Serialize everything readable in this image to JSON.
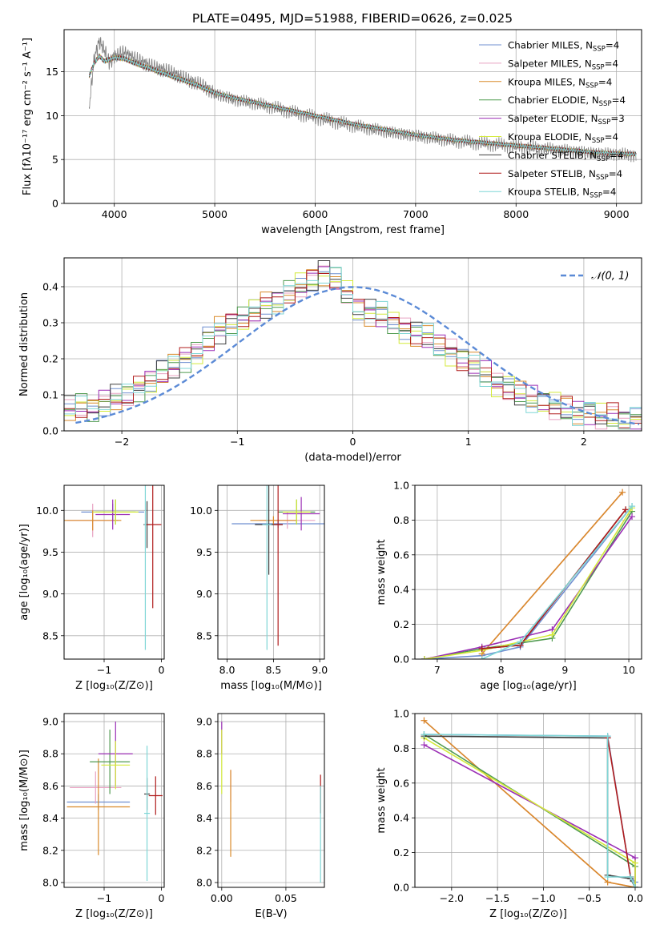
{
  "figure": {
    "title": "PLATE=0495, MJD=51988, FIBERID=0626, z=0.025"
  },
  "series": [
    {
      "name": "Chabrier MILES",
      "nssp": "4",
      "color": "#6f8fd0"
    },
    {
      "name": "Salpeter MILES",
      "nssp": "4",
      "color": "#e8a2c2"
    },
    {
      "name": "Kroupa MILES",
      "nssp": "4",
      "color": "#d98a2a"
    },
    {
      "name": "Chabrier ELODIE",
      "nssp": "4",
      "color": "#4f9a4f"
    },
    {
      "name": "Salpeter ELODIE",
      "nssp": "3",
      "color": "#9b2fb5"
    },
    {
      "name": "Kroupa ELODIE",
      "nssp": "4",
      "color": "#d4ea3a"
    },
    {
      "name": "Chabrier STELIB",
      "nssp": "4",
      "color": "#3f3f3f"
    },
    {
      "name": "Salpeter STELIB",
      "nssp": "4",
      "color": "#b01c1c"
    },
    {
      "name": "Kroupa STELIB",
      "nssp": "4",
      "color": "#7fd6d6"
    }
  ],
  "chart_data": [
    {
      "id": "spectrum",
      "type": "line",
      "xlabel": "wavelength [Angstrom, rest frame]",
      "ylabel": "Flux [fλ10⁻¹⁷ erg cm⁻² s⁻¹ A⁻¹]",
      "xlim": [
        3500,
        9250
      ],
      "ylim": [
        0,
        19.8
      ],
      "xticks": [
        4000,
        5000,
        6000,
        7000,
        8000,
        9000
      ],
      "yticks": [
        0,
        5,
        10,
        15
      ],
      "data_color": "#808080",
      "data": {
        "x": [
          3750,
          3800,
          3850,
          3900,
          3950,
          4000,
          4100,
          4200,
          4300,
          4400,
          4500,
          4600,
          4700,
          4800,
          4900,
          5000,
          5200,
          5400,
          5600,
          5800,
          6000,
          6200,
          6400,
          6600,
          6800,
          7000,
          7200,
          7400,
          7600,
          7800,
          8000,
          8200,
          8400,
          8600,
          8800,
          9000,
          9200
        ],
        "y": [
          11,
          16.5,
          18.5,
          17.5,
          16,
          16.8,
          17.2,
          16.5,
          16.0,
          15.5,
          15.2,
          14.8,
          14.2,
          13.8,
          13.3,
          12.5,
          11.8,
          11.4,
          10.9,
          10.3,
          9.8,
          9.3,
          8.8,
          8.4,
          8.0,
          7.7,
          7.4,
          7.1,
          6.9,
          6.7,
          6.5,
          6.3,
          6.1,
          5.9,
          5.7,
          5.6,
          5.5
        ]
      },
      "model": {
        "x": [
          3750,
          3800,
          3850,
          3900,
          4000,
          4100,
          4200,
          4300,
          4400,
          4500,
          4600,
          4700,
          4800,
          4900,
          5000,
          5200,
          5400,
          5600,
          5800,
          6000,
          6200,
          6400,
          6600,
          6800,
          7000,
          7200,
          7400,
          7600,
          7800,
          8000,
          8200,
          8400,
          8600,
          8800,
          9000,
          9200
        ],
        "y": [
          14.5,
          16.0,
          16.8,
          16.2,
          16.6,
          16.5,
          16.0,
          15.6,
          15.2,
          14.8,
          14.4,
          14.0,
          13.6,
          13.1,
          12.6,
          12.0,
          11.5,
          11.0,
          10.5,
          10.0,
          9.5,
          9.0,
          8.6,
          8.2,
          7.8,
          7.5,
          7.2,
          7.0,
          6.8,
          6.6,
          6.4,
          6.2,
          6.0,
          5.8,
          5.7,
          5.6
        ]
      },
      "legend_position": "upper right"
    },
    {
      "id": "residuals",
      "type": "line",
      "xlabel": "(data-model)/error",
      "ylabel": "Normed distribution",
      "xlim": [
        -2.5,
        2.5
      ],
      "ylim": [
        0,
        0.48
      ],
      "xticks": [
        -2,
        -1,
        0,
        1,
        2
      ],
      "yticks": [
        0.0,
        0.1,
        0.2,
        0.3,
        0.4
      ],
      "gaussian": {
        "label": "𝒩(0, 1)",
        "color": "#5b8ad6"
      },
      "hist_base": [
        0.06,
        0.07,
        0.06,
        0.08,
        0.09,
        0.1,
        0.12,
        0.14,
        0.16,
        0.18,
        0.2,
        0.22,
        0.25,
        0.28,
        0.3,
        0.31,
        0.33,
        0.35,
        0.36,
        0.38,
        0.4,
        0.42,
        0.44,
        0.42,
        0.38,
        0.34,
        0.33,
        0.32,
        0.3,
        0.28,
        0.27,
        0.26,
        0.24,
        0.22,
        0.2,
        0.18,
        0.16,
        0.13,
        0.12,
        0.1,
        0.09,
        0.08,
        0.07,
        0.06,
        0.05,
        0.05,
        0.04,
        0.04,
        0.03,
        0.03
      ],
      "legend_position": "upper right"
    },
    {
      "id": "age_vs_Z",
      "type": "scatter",
      "xlabel": "Z [log₁₀(Z/Z⊙)]",
      "ylabel": "age  [log₁₀(age/yr)]",
      "xlim": [
        -1.7,
        0.05
      ],
      "ylim": [
        8.22,
        10.3
      ],
      "xticks": [
        -1,
        0
      ],
      "xticklabels": [
        "−1",
        "0"
      ],
      "yticks": [
        8.5,
        9.0,
        9.5,
        10.0
      ],
      "points": [
        {
          "s": 0,
          "x": -0.85,
          "y": 9.98,
          "xerr": 0.55,
          "yerr": 0.1
        },
        {
          "s": 1,
          "x": -1.2,
          "y": 9.88,
          "xerr": 0.45,
          "yerr": 0.2
        },
        {
          "s": 2,
          "x": -1.2,
          "y": 9.88,
          "xerr": 0.5,
          "yerr": 0.12
        },
        {
          "s": 3,
          "x": -0.8,
          "y": 9.98,
          "xerr": 0.35,
          "yerr": 0.15
        },
        {
          "s": 4,
          "x": -0.85,
          "y": 9.95,
          "xerr": 0.3,
          "yerr": 0.18
        },
        {
          "s": 5,
          "x": -0.8,
          "y": 9.98,
          "xerr": 0.4,
          "yerr": 0.15
        },
        {
          "s": 6,
          "x": -0.25,
          "y": 9.83,
          "xerr": 0.06,
          "yerr": 0.28
        },
        {
          "s": 7,
          "x": -0.15,
          "y": 9.83,
          "xerr": 0.15,
          "yerr": 1.0
        },
        {
          "s": 8,
          "x": -0.28,
          "y": 9.83,
          "xerr": 0.02,
          "yerr": 1.5
        }
      ]
    },
    {
      "id": "age_vs_mass",
      "type": "scatter",
      "xlabel": "mass [log₁₀(M/M⊙)]",
      "ylabel": "",
      "xlim": [
        7.9,
        9.05
      ],
      "ylim": [
        8.22,
        10.3
      ],
      "xticks": [
        8.0,
        8.5,
        9.0
      ],
      "yticks": [
        8.5,
        9.0,
        9.5,
        10.0
      ],
      "points": [
        {
          "s": 0,
          "x": 8.55,
          "y": 9.84,
          "xerr": 0.5,
          "yerr": 0.05
        },
        {
          "s": 1,
          "x": 8.65,
          "y": 9.88,
          "xerr": 0.3,
          "yerr": 0.1
        },
        {
          "s": 2,
          "x": 8.5,
          "y": 9.88,
          "xerr": 0.25,
          "yerr": 0.05
        },
        {
          "s": 3,
          "x": 8.75,
          "y": 9.98,
          "xerr": 0.2,
          "yerr": 0.15
        },
        {
          "s": 4,
          "x": 8.8,
          "y": 9.96,
          "xerr": 0.2,
          "yerr": 0.2
        },
        {
          "s": 5,
          "x": 8.75,
          "y": 9.98,
          "xerr": 0.15,
          "yerr": 0.15
        },
        {
          "s": 6,
          "x": 8.45,
          "y": 9.83,
          "xerr": 0.15,
          "yerr": 0.6
        },
        {
          "s": 7,
          "x": 8.55,
          "y": 9.83,
          "xerr": 0.05,
          "yerr": 1.45
        },
        {
          "s": 8,
          "x": 8.43,
          "y": 9.83,
          "xerr": 0.05,
          "yerr": 1.5
        }
      ]
    },
    {
      "id": "massweight_vs_age",
      "type": "line",
      "xlabel": "age  [log₁₀(age/yr)]",
      "ylabel": "mass weight",
      "xlim": [
        6.65,
        10.2
      ],
      "ylim": [
        0.0,
        1.0
      ],
      "xticks": [
        7,
        8,
        9,
        10
      ],
      "yticks": [
        0.0,
        0.2,
        0.4,
        0.6,
        0.8,
        1.0
      ],
      "lines": [
        {
          "s": 0,
          "x": [
            6.8,
            7.7,
            8.3,
            10.05
          ],
          "y": [
            0.0,
            0.02,
            0.07,
            0.88
          ]
        },
        {
          "s": 1,
          "x": [
            7.7,
            9.9
          ],
          "y": [
            0.03,
            0.96
          ]
        },
        {
          "s": 2,
          "x": [
            7.7,
            9.9
          ],
          "y": [
            0.03,
            0.96
          ]
        },
        {
          "s": 3,
          "x": [
            6.8,
            7.7,
            8.8,
            10.05
          ],
          "y": [
            0.0,
            0.06,
            0.12,
            0.85
          ]
        },
        {
          "s": 4,
          "x": [
            6.8,
            7.7,
            8.8,
            10.05
          ],
          "y": [
            0.0,
            0.07,
            0.17,
            0.82
          ]
        },
        {
          "s": 5,
          "x": [
            6.8,
            7.7,
            8.8,
            10.05
          ],
          "y": [
            0.0,
            0.05,
            0.14,
            0.87
          ]
        },
        {
          "s": 6,
          "x": [
            7.7,
            8.3,
            9.95
          ],
          "y": [
            0.06,
            0.08,
            0.86
          ]
        },
        {
          "s": 7,
          "x": [
            7.7,
            8.3,
            9.95
          ],
          "y": [
            0.06,
            0.08,
            0.86
          ]
        },
        {
          "s": 8,
          "x": [
            7.7,
            8.3,
            10.05
          ],
          "y": [
            0.0,
            0.1,
            0.88
          ]
        }
      ]
    },
    {
      "id": "mass_vs_Z",
      "type": "scatter",
      "xlabel": "Z [log₁₀(Z/Z⊙)]",
      "ylabel": "mass [log₁₀(M/M⊙)]",
      "xlim": [
        -1.7,
        0.05
      ],
      "ylim": [
        7.97,
        9.05
      ],
      "xticks": [
        -1,
        0
      ],
      "xticklabels": [
        "−1",
        "0"
      ],
      "yticks": [
        8.0,
        8.2,
        8.4,
        8.6,
        8.8,
        9.0
      ],
      "points": [
        {
          "s": 0,
          "x": -1.1,
          "y": 8.5,
          "xerr": 0.55,
          "yerr": 0.05
        },
        {
          "s": 1,
          "x": -1.15,
          "y": 8.59,
          "xerr": 0.45,
          "yerr": 0.1
        },
        {
          "s": 2,
          "x": -1.1,
          "y": 8.47,
          "xerr": 0.55,
          "yerr": 0.3
        },
        {
          "s": 3,
          "x": -0.9,
          "y": 8.75,
          "xerr": 0.35,
          "yerr": 0.2
        },
        {
          "s": 4,
          "x": -0.8,
          "y": 8.8,
          "xerr": 0.3,
          "yerr": 0.2
        },
        {
          "s": 5,
          "x": -0.8,
          "y": 8.73,
          "xerr": 0.25,
          "yerr": 0.15
        },
        {
          "s": 6,
          "x": -0.25,
          "y": 8.55,
          "xerr": 0.05,
          "yerr": 0.1
        },
        {
          "s": 7,
          "x": -0.1,
          "y": 8.54,
          "xerr": 0.12,
          "yerr": 0.12
        },
        {
          "s": 8,
          "x": -0.25,
          "y": 8.43,
          "xerr": 0.05,
          "yerr": 0.42
        }
      ]
    },
    {
      "id": "mass_vs_ebv",
      "type": "scatter",
      "xlabel": "E(B-V)",
      "ylabel": "",
      "xlim": [
        -0.003,
        0.08
      ],
      "ylim": [
        7.97,
        9.05
      ],
      "xticks": [
        0.0,
        0.05
      ],
      "xticklabels": [
        "0.00",
        "0.05"
      ],
      "yticks": [
        8.0,
        8.2,
        8.4,
        8.6,
        8.8,
        9.0
      ],
      "points": [
        {
          "s": 4,
          "x": 0.0,
          "y": 8.9,
          "xerr": 0.0,
          "yerr": 0.1
        },
        {
          "s": 5,
          "x": 0.0,
          "y": 8.75,
          "xerr": 0.0,
          "yerr": 0.2
        },
        {
          "s": 1,
          "x": 0.007,
          "y": 8.6,
          "xerr": 0.0,
          "yerr": 0.1
        },
        {
          "s": 2,
          "x": 0.007,
          "y": 8.43,
          "xerr": 0.0,
          "yerr": 0.27
        },
        {
          "s": 7,
          "x": 0.077,
          "y": 8.55,
          "xerr": 0.0,
          "yerr": 0.12
        },
        {
          "s": 8,
          "x": 0.077,
          "y": 8.3,
          "xerr": 0.0,
          "yerr": 0.3
        }
      ]
    },
    {
      "id": "massweight_vs_Z",
      "type": "line",
      "xlabel": "Z [log₁₀(Z/Z⊙)]",
      "ylabel": "mass weight",
      "xlim": [
        -2.4,
        0.07
      ],
      "ylim": [
        0.0,
        1.0
      ],
      "xticks": [
        -2.0,
        -1.5,
        -1.0,
        -0.5,
        0.0
      ],
      "xticklabels": [
        "−2.0",
        "−1.5",
        "−1.0",
        "−0.5",
        "0.0"
      ],
      "yticks": [
        0.0,
        0.2,
        0.4,
        0.6,
        0.8,
        1.0
      ],
      "lines": [
        {
          "s": 0,
          "x": [
            -2.3,
            -0.3,
            -0.05,
            0.0
          ],
          "y": [
            0.88,
            0.87,
            0.06,
            0.03
          ]
        },
        {
          "s": 1,
          "x": [
            -2.3,
            -0.3,
            0.0
          ],
          "y": [
            0.96,
            0.03,
            0.0
          ]
        },
        {
          "s": 2,
          "x": [
            -2.3,
            -0.3,
            0.0
          ],
          "y": [
            0.96,
            0.03,
            0.0
          ]
        },
        {
          "s": 3,
          "x": [
            -2.3,
            0.0,
            0.0
          ],
          "y": [
            0.88,
            0.12,
            0.0
          ]
        },
        {
          "s": 4,
          "x": [
            -2.3,
            0.0,
            0.0
          ],
          "y": [
            0.82,
            0.17,
            0.0
          ]
        },
        {
          "s": 5,
          "x": [
            -2.3,
            0.0,
            0.0
          ],
          "y": [
            0.86,
            0.14,
            0.0
          ]
        },
        {
          "s": 6,
          "x": [
            -2.3,
            -0.3,
            -0.3,
            -0.05,
            0.0
          ],
          "y": [
            0.87,
            0.86,
            0.07,
            0.05,
            0.0
          ]
        },
        {
          "s": 7,
          "x": [
            -0.3,
            -0.05
          ],
          "y": [
            0.86,
            0.06
          ]
        },
        {
          "s": 8,
          "x": [
            -2.3,
            -0.3,
            -0.3,
            -0.05,
            0.0
          ],
          "y": [
            0.88,
            0.87,
            0.06,
            0.06,
            0.0
          ]
        }
      ]
    }
  ]
}
